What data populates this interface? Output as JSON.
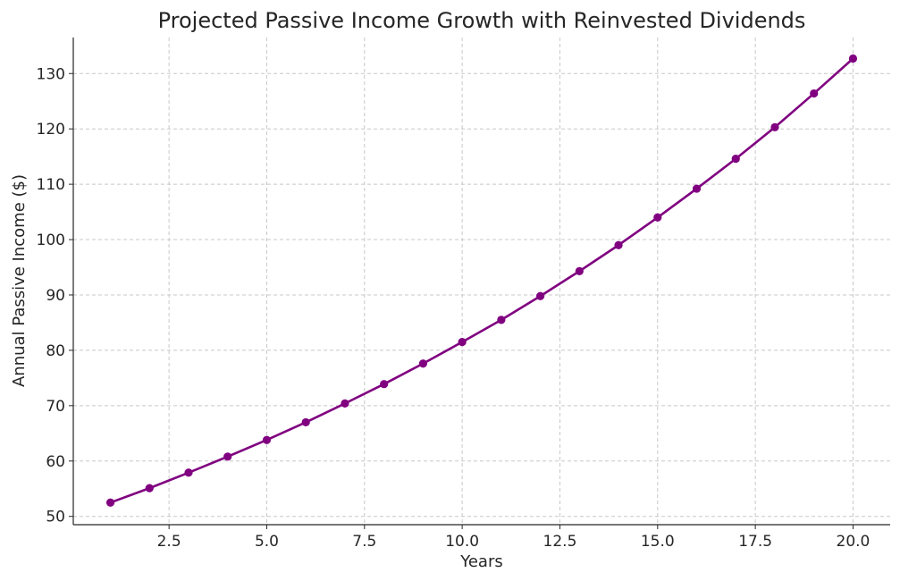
{
  "chart_data": {
    "type": "line",
    "title": "Projected Passive Income Growth with Reinvested Dividends",
    "xlabel": "Years",
    "ylabel": "Annual Passive Income ($)",
    "xlim": [
      0.05,
      20.95
    ],
    "ylim": [
      48.5,
      136.5
    ],
    "xticks": [
      2.5,
      5.0,
      7.5,
      10.0,
      12.5,
      15.0,
      17.5,
      20.0
    ],
    "xtick_labels": [
      "2.5",
      "5.0",
      "7.5",
      "10.0",
      "12.5",
      "15.0",
      "17.5",
      "20.0"
    ],
    "yticks": [
      50,
      60,
      70,
      80,
      90,
      100,
      110,
      120,
      130
    ],
    "ytick_labels": [
      "50",
      "60",
      "70",
      "80",
      "90",
      "100",
      "110",
      "120",
      "130"
    ],
    "grid": true,
    "series": [
      {
        "color": "#800080",
        "marker": "circle",
        "x": [
          1,
          2,
          3,
          4,
          5,
          6,
          7,
          8,
          9,
          10,
          11,
          12,
          13,
          14,
          15,
          16,
          17,
          18,
          19,
          20
        ],
        "y": [
          52.5,
          55.1,
          57.9,
          60.8,
          63.8,
          67.0,
          70.4,
          73.9,
          77.6,
          81.5,
          85.5,
          89.8,
          94.3,
          99.0,
          104.0,
          109.2,
          114.6,
          120.3,
          126.4,
          132.7
        ]
      }
    ]
  }
}
